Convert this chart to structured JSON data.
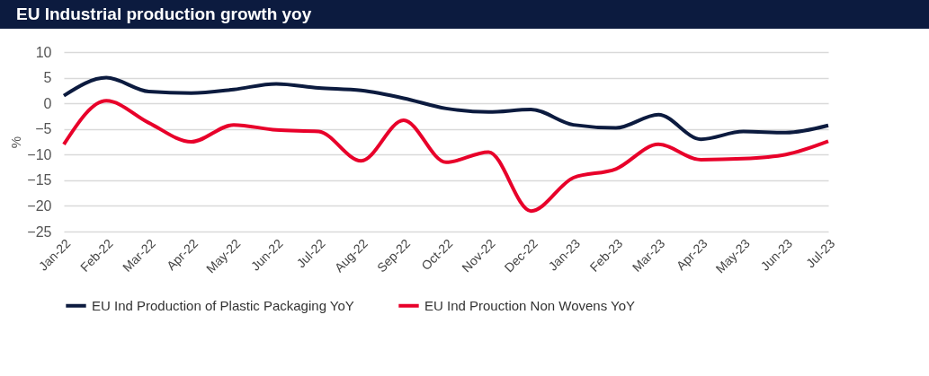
{
  "chart_data": {
    "type": "line",
    "title": "EU Industrial production growth yoy",
    "ylabel": "%",
    "categories": [
      "Jan-22",
      "Feb-22",
      "Mar-22",
      "Apr-22",
      "May-22",
      "Jun-22",
      "Jul-22",
      "Aug-22",
      "Sep-22",
      "Oct-22",
      "Nov-22",
      "Dec-22",
      "Jan-23",
      "Feb-23",
      "Mar-23",
      "Apr-23",
      "May-23",
      "Jun-23",
      "Jul-23"
    ],
    "series": [
      {
        "name": "EU Ind Production of Plastic Packaging YoY",
        "color": "#0c1b3f",
        "values": [
          1.5,
          5,
          2.3,
          2,
          2.7,
          3.8,
          3,
          2.5,
          1,
          -1,
          -1.7,
          -1.2,
          -4.2,
          -4.8,
          -2.2,
          -7,
          -5.5,
          -5.7,
          -4.3
        ]
      },
      {
        "name": "EU Ind Prouction Non Wovens YoY",
        "color": "#e8002a",
        "values": [
          -8,
          0.5,
          -3.8,
          -7.5,
          -4.2,
          -5.2,
          -5.5,
          -11.2,
          -3.3,
          -11.5,
          -9.5,
          -21,
          -14.5,
          -12.8,
          -8,
          -11,
          -10.8,
          -10,
          -7.4
        ]
      }
    ],
    "ylim": [
      -25,
      10
    ],
    "yticks": [
      -25,
      -20,
      -15,
      -10,
      -5,
      0,
      5,
      10
    ],
    "grid": "y",
    "legend": "bottom",
    "line_style": "solid"
  }
}
